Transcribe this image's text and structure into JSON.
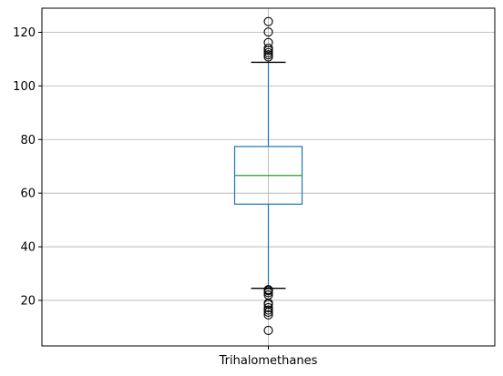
{
  "chart_data": {
    "type": "box",
    "title": "",
    "xlabel": "",
    "ylabel": "",
    "categories": [
      "Trihalomethanes"
    ],
    "ylim": [
      3,
      129
    ],
    "yticks": [
      20,
      40,
      60,
      80,
      100,
      120
    ],
    "grid": true,
    "series": [
      {
        "category": "Trihalomethanes",
        "whisker_low": 24.5,
        "q1": 55.9,
        "median": 66.6,
        "q3": 77.4,
        "whisker_high": 108.8,
        "outliers_low": [
          8.8,
          14.6,
          15.6,
          16.4,
          17.3,
          18.5,
          19.0,
          22.0,
          22.9,
          23.6,
          24.0
        ],
        "outliers_high": [
          110.8,
          111.6,
          112.4,
          113.3,
          114.1,
          116.2,
          120.1,
          124.0
        ]
      }
    ],
    "colors": {
      "box": "#1f77b4",
      "median": "#2ca02c",
      "whisker_cap": "#000000",
      "outlier_edge": "#000000",
      "grid": "#b0b0b0",
      "axes": "#000000"
    }
  }
}
